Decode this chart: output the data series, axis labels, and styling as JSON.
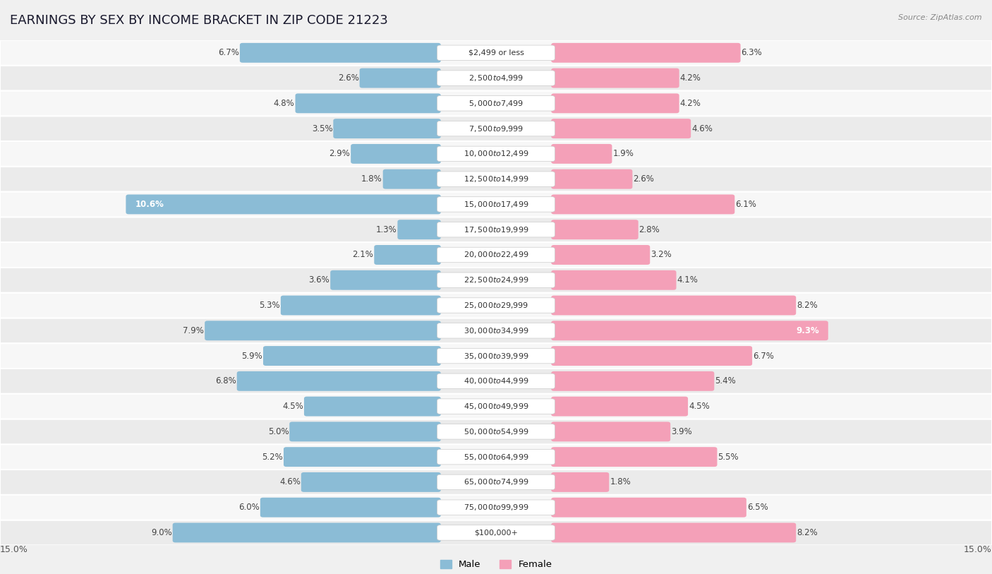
{
  "title": "EARNINGS BY SEX BY INCOME BRACKET IN ZIP CODE 21223",
  "source": "Source: ZipAtlas.com",
  "categories": [
    "$2,499 or less",
    "$2,500 to $4,999",
    "$5,000 to $7,499",
    "$7,500 to $9,999",
    "$10,000 to $12,499",
    "$12,500 to $14,999",
    "$15,000 to $17,499",
    "$17,500 to $19,999",
    "$20,000 to $22,499",
    "$22,500 to $24,999",
    "$25,000 to $29,999",
    "$30,000 to $34,999",
    "$35,000 to $39,999",
    "$40,000 to $44,999",
    "$45,000 to $49,999",
    "$50,000 to $54,999",
    "$55,000 to $64,999",
    "$65,000 to $74,999",
    "$75,000 to $99,999",
    "$100,000+"
  ],
  "male_values": [
    6.7,
    2.6,
    4.8,
    3.5,
    2.9,
    1.8,
    10.6,
    1.3,
    2.1,
    3.6,
    5.3,
    7.9,
    5.9,
    6.8,
    4.5,
    5.0,
    5.2,
    4.6,
    6.0,
    9.0
  ],
  "female_values": [
    6.3,
    4.2,
    4.2,
    4.6,
    1.9,
    2.6,
    6.1,
    2.8,
    3.2,
    4.1,
    8.2,
    9.3,
    6.7,
    5.4,
    4.5,
    3.9,
    5.5,
    1.8,
    6.5,
    8.2
  ],
  "male_color": "#8bbcd6",
  "female_color": "#f4a0b8",
  "male_highlight_color": "#5b9ec9",
  "female_highlight_color": "#e8607a",
  "row_color_even": "#ebebeb",
  "row_color_odd": "#f7f7f7",
  "background_color": "#f0f0f0",
  "label_bg_color": "#ffffff",
  "xlim": 15.0,
  "label_fontsize": 8.5,
  "value_fontsize": 8.5,
  "title_fontsize": 13
}
